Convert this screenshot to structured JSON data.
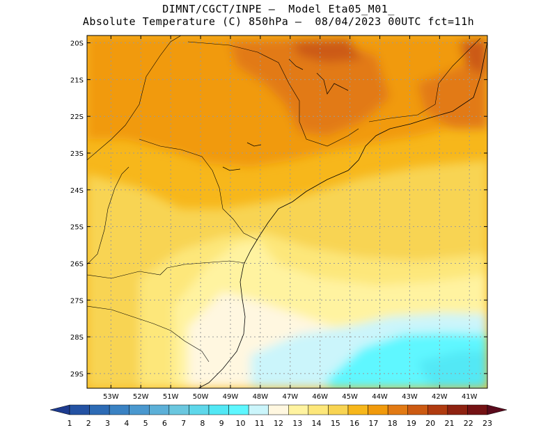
{
  "title_line1": "DIMNT/CGCT/INPE –  Model Eta05_M01_",
  "title_line2": "Absolute Temperature (C) 850hPa –  08/04/2023 00UTC fct=11h",
  "map": {
    "lon_range": [
      -53.8,
      -40.4
    ],
    "lat_range": [
      -29.4,
      -19.8
    ],
    "lat_labels": [
      "20S",
      "21S",
      "22S",
      "23S",
      "24S",
      "25S",
      "26S",
      "27S",
      "28S",
      "29S"
    ],
    "lat_values": [
      -20,
      -21,
      -22,
      -23,
      -24,
      -25,
      -26,
      -27,
      -28,
      -29
    ],
    "lon_labels": [
      "53W",
      "52W",
      "51W",
      "50W",
      "49W",
      "48W",
      "47W",
      "46W",
      "45W",
      "44W",
      "43W",
      "42W",
      "41W"
    ],
    "lon_values": [
      -53,
      -52,
      -51,
      -50,
      -49,
      -48,
      -47,
      -46,
      -45,
      -44,
      -43,
      -42,
      -41
    ]
  },
  "colorbar": {
    "labels": [
      "1",
      "2",
      "3",
      "4",
      "5",
      "6",
      "7",
      "8",
      "9",
      "10",
      "11",
      "12",
      "13",
      "14",
      "15",
      "16",
      "17",
      "18",
      "19",
      "20",
      "21",
      "22",
      "23"
    ],
    "colors": [
      "#1d3b8f",
      "#2452a3",
      "#2d6bb5",
      "#3a82c3",
      "#4a98cf",
      "#5cb0d8",
      "#6ac7df",
      "#5ed7ea",
      "#52e8f5",
      "#5ef7ff",
      "#cbf5fb",
      "#fff7e0",
      "#fff3a0",
      "#fde77a",
      "#f8d452",
      "#f7b71b",
      "#f19a0c",
      "#e27a14",
      "#cc5a12",
      "#b03b10",
      "#8e2211",
      "#741214",
      "#5a0a1c"
    ]
  },
  "colors": {
    "coast": "#000000",
    "grid": "#9a9a9a"
  }
}
